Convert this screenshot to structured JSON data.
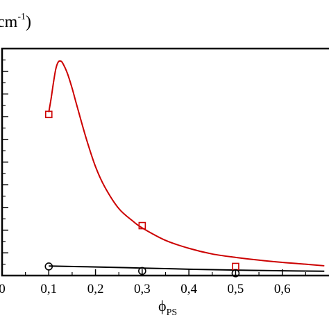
{
  "chart_data": {
    "type": "scatter",
    "title": "",
    "ylabel_partial": "cm",
    "ylabel_superscript": "-1",
    "ylabel_close": ")",
    "xlabel_main": "ϕ",
    "xlabel_sub": "PS",
    "xlim": [
      0.0,
      0.7
    ],
    "ylim": [
      0,
      10
    ],
    "x_ticks": [
      0.0,
      0.1,
      0.2,
      0.3,
      0.4,
      0.5,
      0.6
    ],
    "x_tick_labels": [
      "0",
      "0,1",
      "0,2",
      "0,3",
      "0,4",
      "0,5",
      "0,6"
    ],
    "y_major_ticks": [
      0,
      1,
      2,
      3,
      4,
      5,
      6,
      7,
      8,
      9,
      10
    ],
    "series": [
      {
        "marker": "square",
        "color": "#cc0000",
        "points": [
          {
            "x": 0.1,
            "y": 7.1
          },
          {
            "x": 0.3,
            "y": 2.2
          },
          {
            "x": 0.5,
            "y": 0.4
          }
        ],
        "fit": {
          "x": [
            0.1,
            0.105,
            0.11,
            0.115,
            0.12,
            0.125,
            0.13,
            0.14,
            0.15,
            0.16,
            0.18,
            0.2,
            0.22,
            0.25,
            0.28,
            0.3,
            0.35,
            0.4,
            0.45,
            0.5,
            0.55,
            0.6,
            0.65,
            0.69
          ],
          "y": [
            7.2,
            7.8,
            8.5,
            9.1,
            9.4,
            9.45,
            9.35,
            8.9,
            8.25,
            7.5,
            6.05,
            4.8,
            3.9,
            2.95,
            2.4,
            2.1,
            1.55,
            1.2,
            0.95,
            0.8,
            0.68,
            0.58,
            0.5,
            0.43
          ]
        }
      },
      {
        "marker": "circle",
        "color": "#000000",
        "points": [
          {
            "x": 0.1,
            "y": 0.4
          },
          {
            "x": 0.3,
            "y": 0.2
          },
          {
            "x": 0.5,
            "y": 0.1
          }
        ],
        "fit": {
          "x": [
            0.1,
            0.2,
            0.3,
            0.4,
            0.5,
            0.6,
            0.69
          ],
          "y": [
            0.42,
            0.38,
            0.33,
            0.28,
            0.24,
            0.21,
            0.19
          ]
        }
      }
    ]
  }
}
